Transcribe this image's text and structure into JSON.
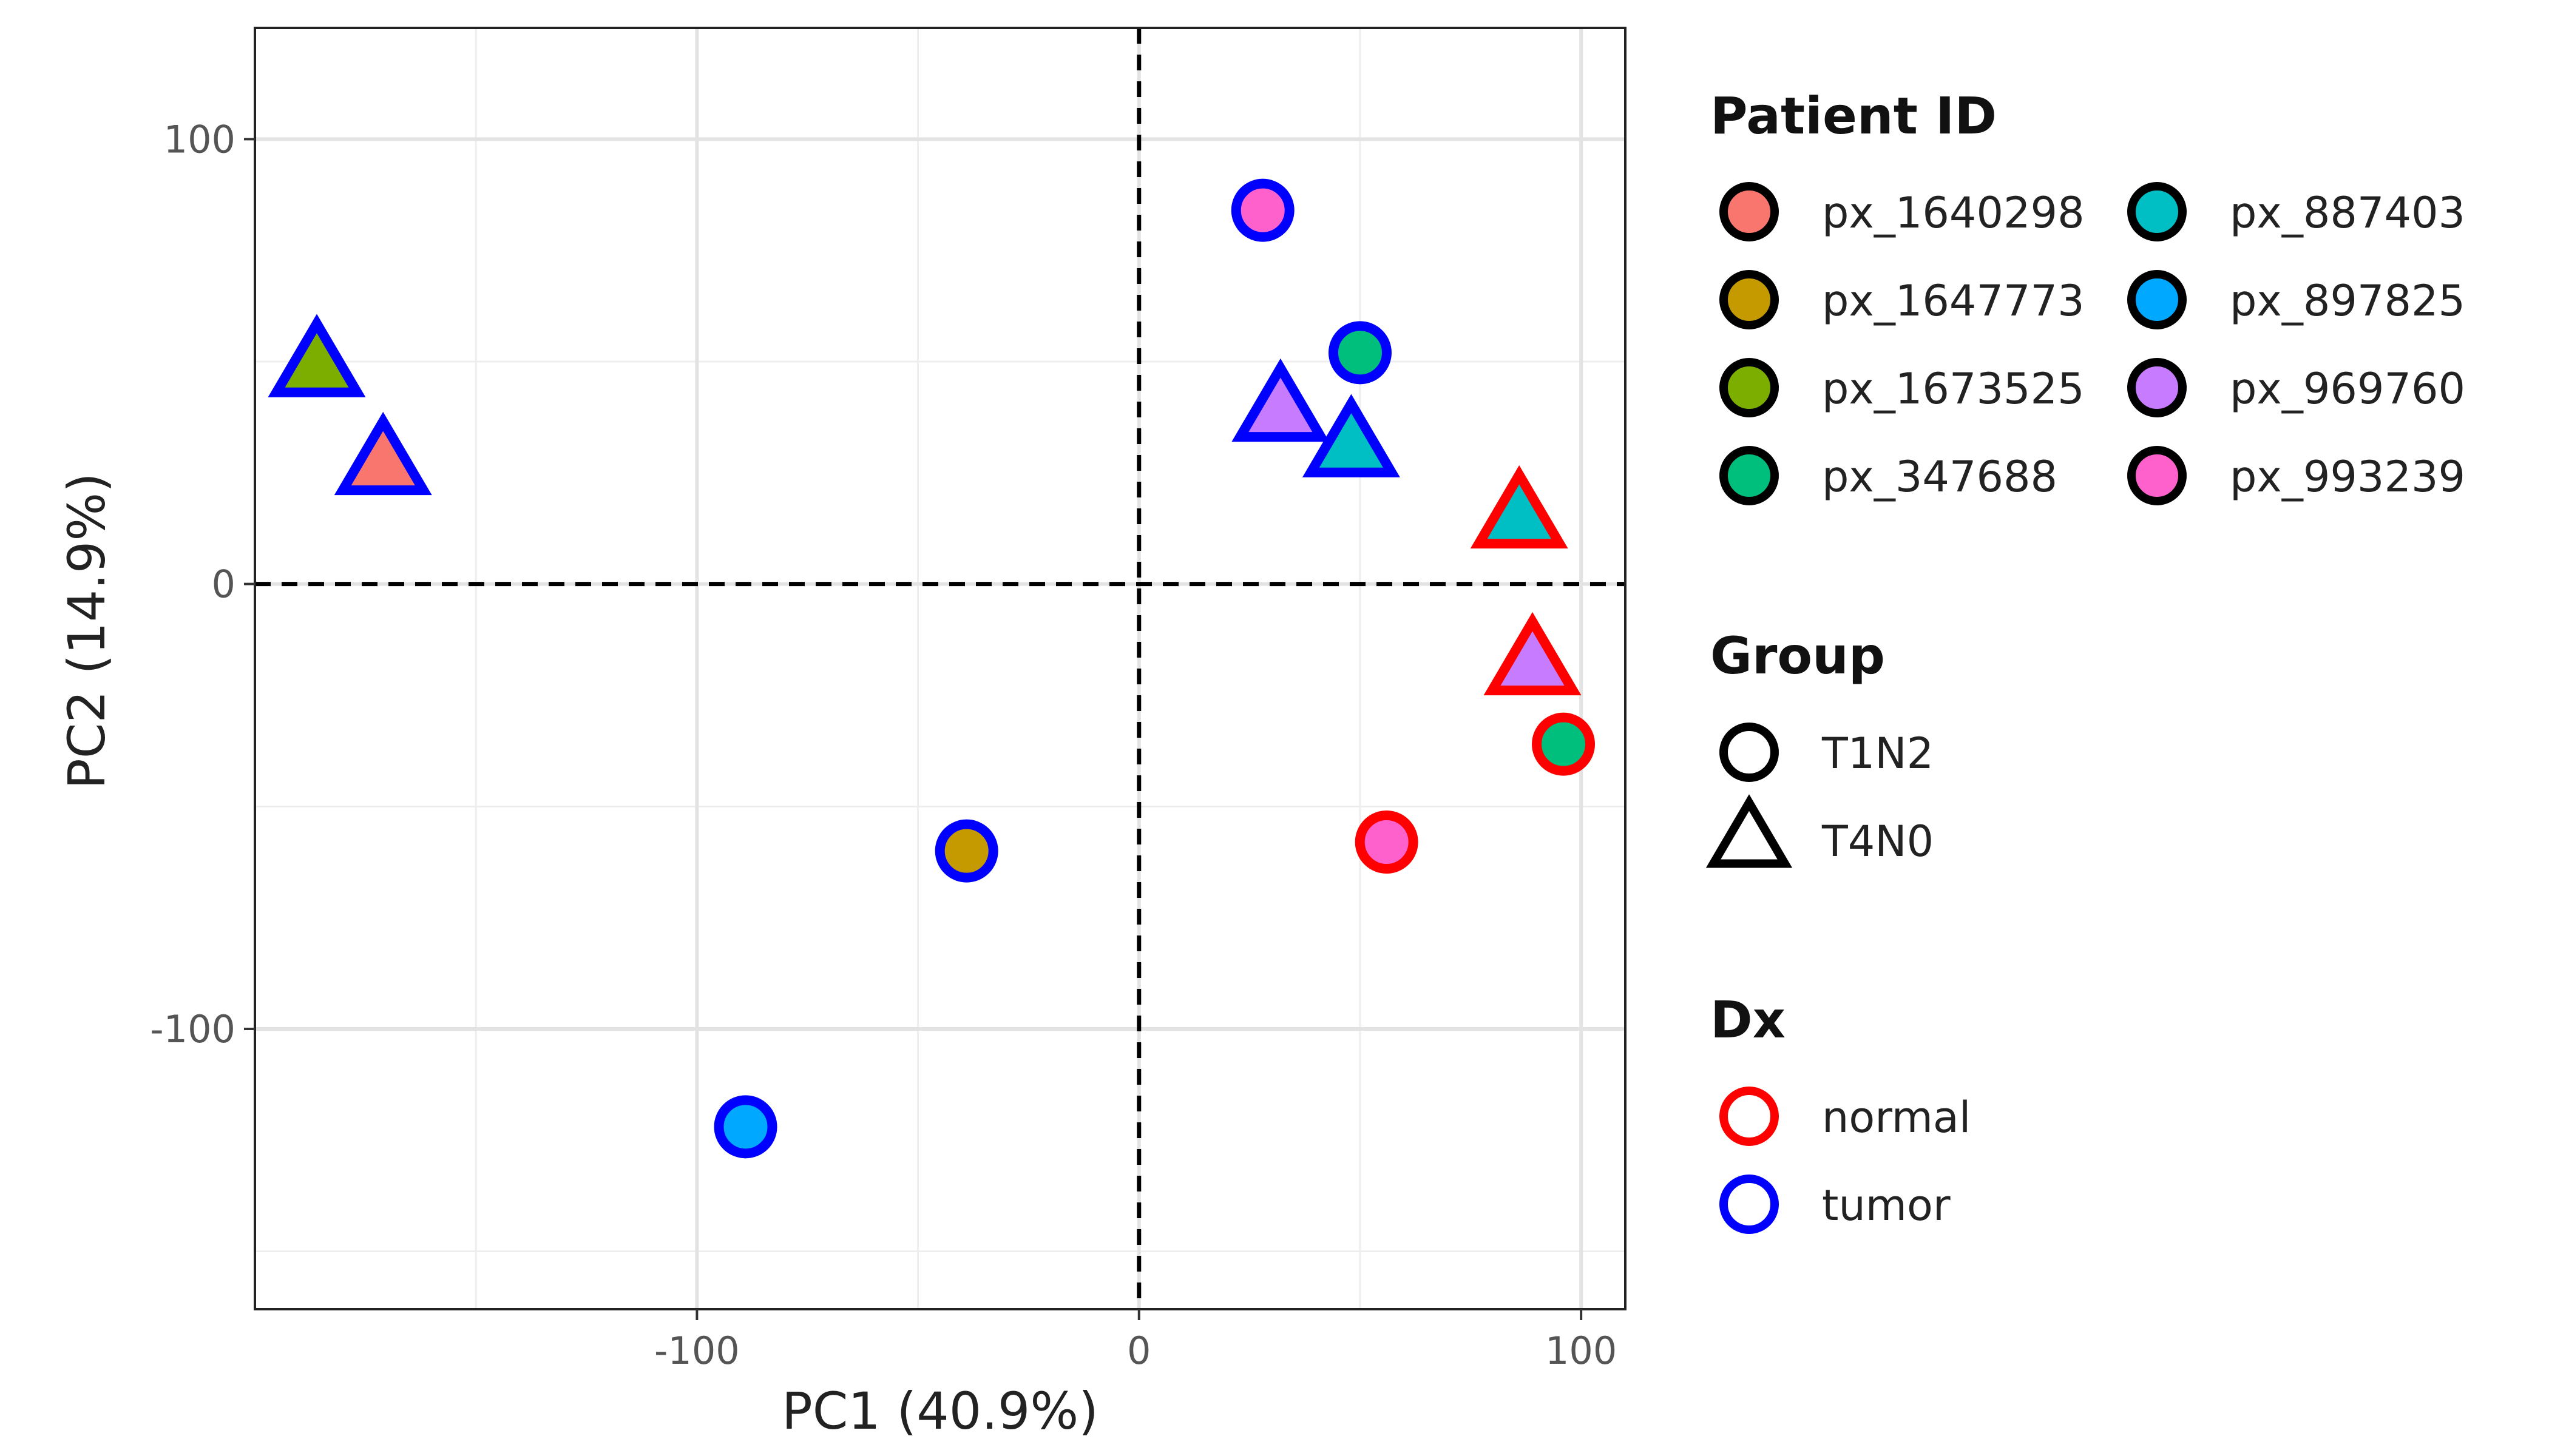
{
  "chart_data": {
    "type": "scatter",
    "title": "",
    "xlabel": "PC1 (40.9%)",
    "ylabel": "PC2 (14.9%)",
    "xlim": [
      -200,
      110
    ],
    "ylim": [
      -163,
      125
    ],
    "x_ticks": [
      -100,
      0,
      100
    ],
    "y_ticks": [
      -100,
      0,
      100
    ],
    "x_tick_labels": [
      "-100",
      "0",
      "100"
    ],
    "y_tick_labels": [
      "-100",
      "0",
      "100"
    ],
    "reference_lines": [
      {
        "axis": "x",
        "value": 0,
        "style": "dashed"
      },
      {
        "axis": "y",
        "value": 0,
        "style": "dashed"
      }
    ],
    "grid": true,
    "legends": {
      "patient": {
        "title": "Patient ID",
        "placement": "right",
        "items": [
          {
            "label": "px_1640298",
            "color": "#F8766D"
          },
          {
            "label": "px_1647773",
            "color": "#C49A00"
          },
          {
            "label": "px_1673525",
            "color": "#7CAE00"
          },
          {
            "label": "px_347688",
            "color": "#00BF7D"
          },
          {
            "label": "px_887403",
            "color": "#00BFC4"
          },
          {
            "label": "px_897825",
            "color": "#00A9FF"
          },
          {
            "label": "px_969760",
            "color": "#C77CFF"
          },
          {
            "label": "px_993239",
            "color": "#FF61CC"
          }
        ]
      },
      "group": {
        "title": "Group",
        "items": [
          {
            "label": "T1N2",
            "shape": "circle"
          },
          {
            "label": "T4N0",
            "shape": "triangle"
          }
        ]
      },
      "dx": {
        "title": "Dx",
        "items": [
          {
            "label": "normal",
            "color": "#FF0000"
          },
          {
            "label": "tumor",
            "color": "#0000FF"
          }
        ]
      }
    },
    "points": [
      {
        "x": 28,
        "y": 84,
        "patient": "px_993239",
        "group": "T1N2",
        "dx": "tumor"
      },
      {
        "x": 50,
        "y": 52,
        "patient": "px_347688",
        "group": "T1N2",
        "dx": "tumor"
      },
      {
        "x": 32,
        "y": 39,
        "patient": "px_969760",
        "group": "T4N0",
        "dx": "tumor"
      },
      {
        "x": 48,
        "y": 31,
        "patient": "px_887403",
        "group": "T4N0",
        "dx": "tumor"
      },
      {
        "x": 86,
        "y": 15,
        "patient": "px_887403",
        "group": "T4N0",
        "dx": "normal"
      },
      {
        "x": 89,
        "y": -18,
        "patient": "px_969760",
        "group": "T4N0",
        "dx": "normal"
      },
      {
        "x": 96,
        "y": -36,
        "patient": "px_347688",
        "group": "T1N2",
        "dx": "normal"
      },
      {
        "x": 56,
        "y": -58,
        "patient": "px_993239",
        "group": "T1N2",
        "dx": "normal"
      },
      {
        "x": -186,
        "y": 49,
        "patient": "px_1673525",
        "group": "T4N0",
        "dx": "tumor"
      },
      {
        "x": -171,
        "y": 27,
        "patient": "px_1640298",
        "group": "T4N0",
        "dx": "tumor"
      },
      {
        "x": -39,
        "y": -60,
        "patient": "px_1647773",
        "group": "T1N2",
        "dx": "tumor"
      },
      {
        "x": -89,
        "y": -122,
        "patient": "px_897825",
        "group": "T1N2",
        "dx": "tumor"
      }
    ]
  }
}
